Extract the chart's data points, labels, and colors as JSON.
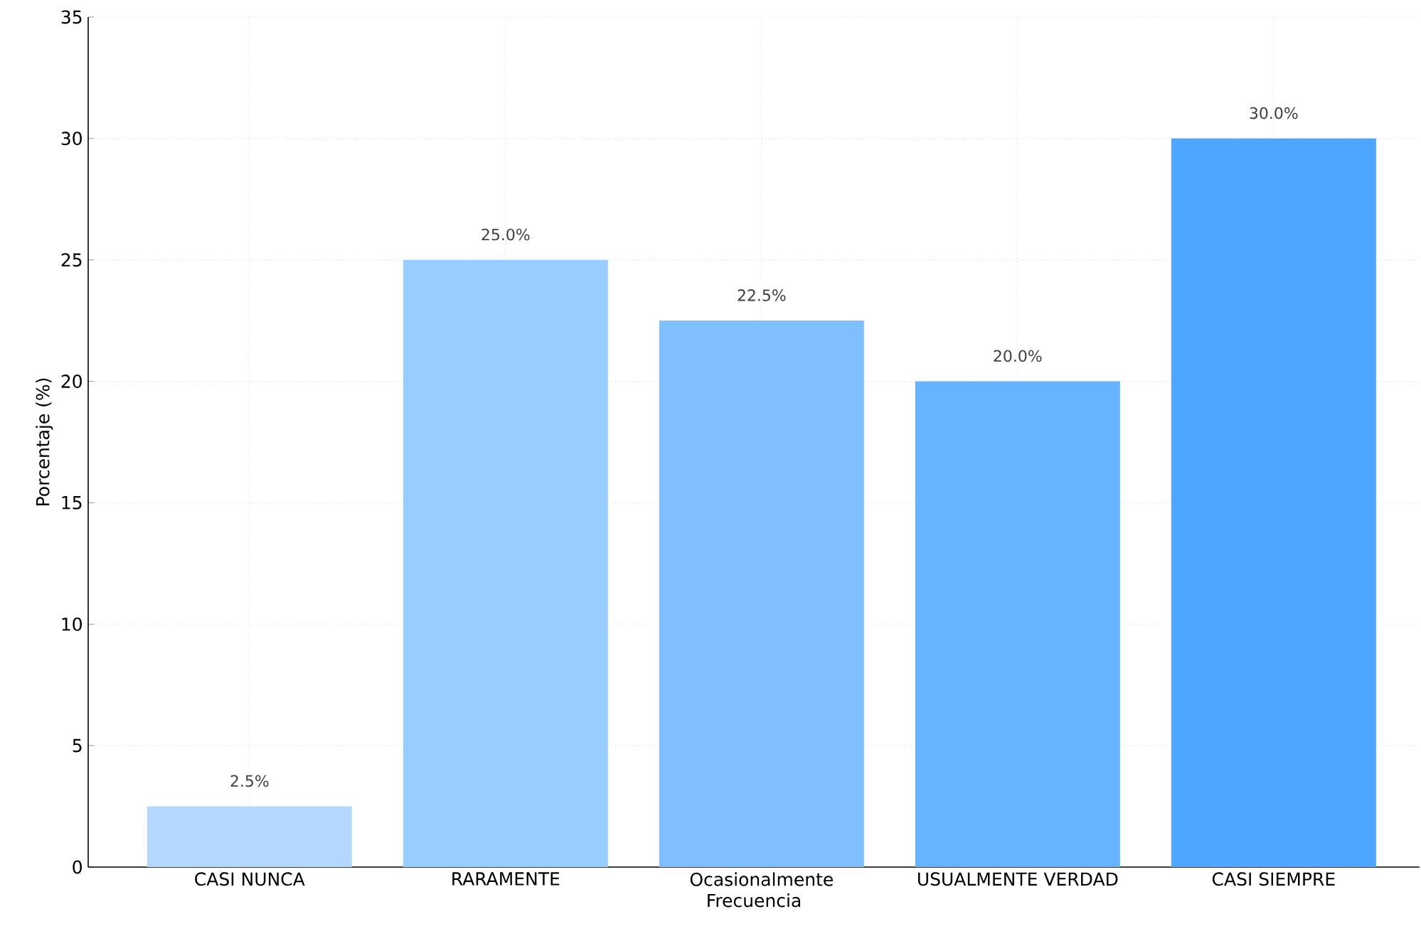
{
  "chart_data": {
    "type": "bar",
    "xlabel": "Frecuencia",
    "ylabel": "Porcentaje (%)",
    "categories": [
      "CASI NUNCA",
      "RARAMENTE",
      "Ocasionalmente",
      "USUALMENTE VERDAD",
      "CASI SIEMPRE"
    ],
    "values": [
      2.5,
      25.0,
      22.5,
      20.0,
      30.0
    ],
    "colors": [
      "#b3d7ff",
      "#99ccff",
      "#80bfff",
      "#66b3ff",
      "#4da6ff"
    ],
    "value_labels": [
      "2.5%",
      "25.0%",
      "22.5%",
      "20.0%",
      "30.0%"
    ],
    "ylim": [
      0,
      35
    ],
    "yticks": [
      0,
      5,
      10,
      15,
      20,
      25,
      30,
      35
    ],
    "grid": true
  }
}
